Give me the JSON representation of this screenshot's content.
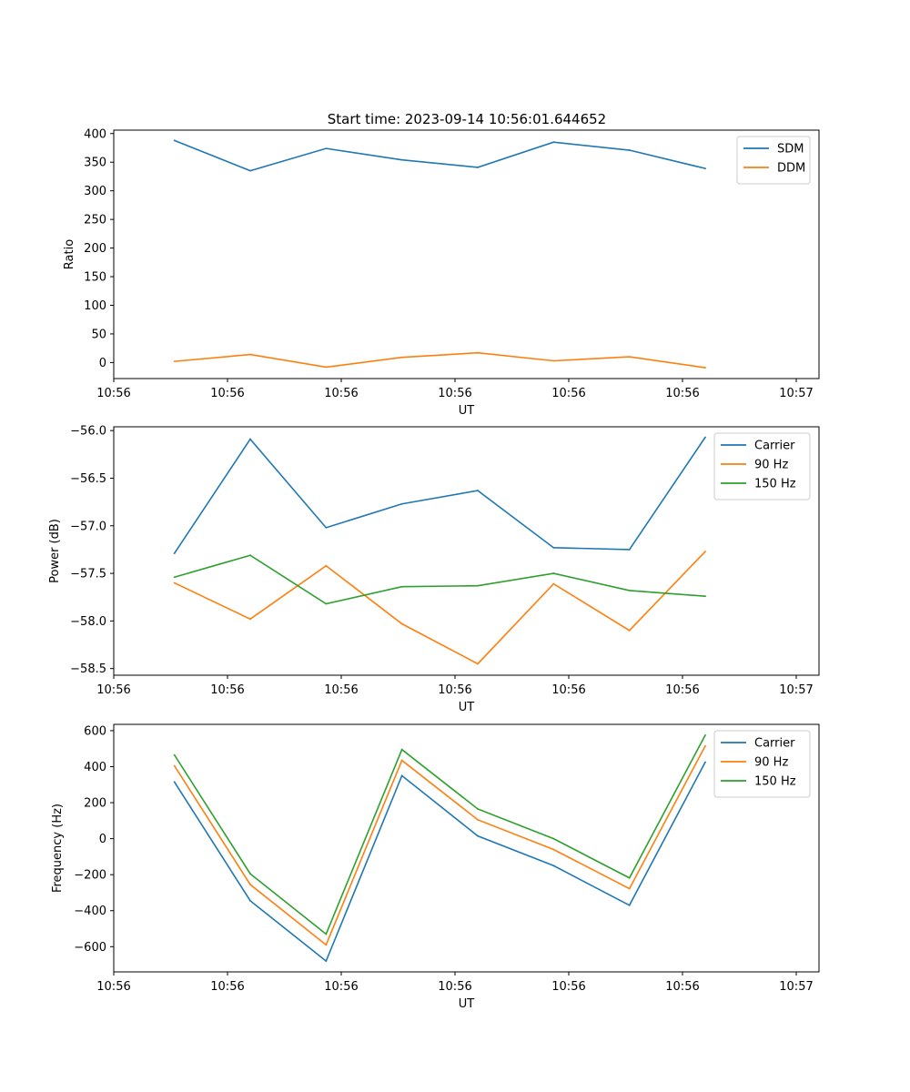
{
  "chart_data": [
    {
      "type": "line",
      "title": "Start time: 2023-09-14 10:56:01.644652",
      "xlabel": "UT",
      "ylabel": "Ratio",
      "x": [
        1,
        2,
        3,
        4,
        5,
        6,
        7,
        8
      ],
      "xlim": [
        0.2,
        9.5
      ],
      "xticks": [
        0.2,
        1.7,
        3.2,
        4.7,
        6.2,
        7.7,
        9.2
      ],
      "xtick_labels": [
        "10:56",
        "10:56",
        "10:56",
        "10:56",
        "10:56",
        "10:56",
        "10:57"
      ],
      "ylim": [
        -28,
        406
      ],
      "yticks": [
        0,
        50,
        100,
        150,
        200,
        250,
        300,
        350,
        400
      ],
      "ytick_labels": [
        "0",
        "50",
        "100",
        "150",
        "200",
        "250",
        "300",
        "350",
        "400"
      ],
      "legend_position": "top-right",
      "series": [
        {
          "name": "SDM",
          "color": "#1f77b4",
          "values": [
            388,
            335,
            374,
            354,
            341,
            385,
            371,
            339
          ]
        },
        {
          "name": "DDM",
          "color": "#ff7f0e",
          "values": [
            2,
            14,
            -8,
            9,
            17,
            3,
            10,
            -9
          ]
        }
      ]
    },
    {
      "type": "line",
      "title": "",
      "xlabel": "UT",
      "ylabel": "Power (dB)",
      "x": [
        1,
        2,
        3,
        4,
        5,
        6,
        7,
        8
      ],
      "xlim": [
        0.2,
        9.5
      ],
      "xticks": [
        0.2,
        1.7,
        3.2,
        4.7,
        6.2,
        7.7,
        9.2
      ],
      "xtick_labels": [
        "10:56",
        "10:56",
        "10:56",
        "10:56",
        "10:56",
        "10:56",
        "10:57"
      ],
      "ylim": [
        -58.57,
        -55.96
      ],
      "yticks": [
        -58.5,
        -58.0,
        -57.5,
        -57.0,
        -56.5,
        -56.0
      ],
      "ytick_labels": [
        "−58.5",
        "−58.0",
        "−57.5",
        "−57.0",
        "−56.5",
        "−56.0"
      ],
      "legend_position": "top-right",
      "series": [
        {
          "name": "Carrier",
          "color": "#1f77b4",
          "values": [
            -57.29,
            -56.09,
            -57.02,
            -56.77,
            -56.63,
            -57.23,
            -57.25,
            -56.07
          ]
        },
        {
          "name": "90 Hz",
          "color": "#ff7f0e",
          "values": [
            -57.6,
            -57.98,
            -57.42,
            -58.03,
            -58.45,
            -57.61,
            -58.1,
            -57.27
          ]
        },
        {
          "name": "150 Hz",
          "color": "#2ca02c",
          "values": [
            -57.54,
            -57.31,
            -57.82,
            -57.64,
            -57.63,
            -57.5,
            -57.68,
            -57.74
          ]
        }
      ]
    },
    {
      "type": "line",
      "title": "",
      "xlabel": "UT",
      "ylabel": "Frequency (Hz)",
      "x": [
        1,
        2,
        3,
        4,
        5,
        6,
        7,
        8
      ],
      "xlim": [
        0.2,
        9.5
      ],
      "xticks": [
        0.2,
        1.7,
        3.2,
        4.7,
        6.2,
        7.7,
        9.2
      ],
      "xtick_labels": [
        "10:56",
        "10:56",
        "10:56",
        "10:56",
        "10:56",
        "10:56",
        "10:57"
      ],
      "ylim": [
        -740,
        635
      ],
      "yticks": [
        -600,
        -400,
        -200,
        0,
        200,
        400,
        600
      ],
      "ytick_labels": [
        "−600",
        "−400",
        "−200",
        "0",
        "200",
        "400",
        "600"
      ],
      "legend_position": "top-right",
      "series": [
        {
          "name": "Carrier",
          "color": "#1f77b4",
          "values": [
            315,
            -345,
            -680,
            350,
            15,
            -150,
            -370,
            425
          ]
        },
        {
          "name": "90 Hz",
          "color": "#ff7f0e",
          "values": [
            405,
            -255,
            -590,
            435,
            105,
            -60,
            -278,
            515
          ]
        },
        {
          "name": "150 Hz",
          "color": "#2ca02c",
          "values": [
            465,
            -195,
            -530,
            495,
            165,
            0,
            -218,
            575
          ]
        }
      ]
    }
  ]
}
